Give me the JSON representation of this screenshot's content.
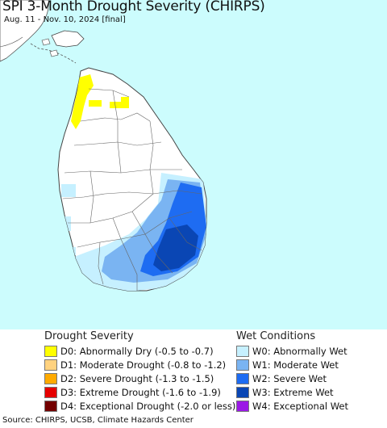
{
  "map": {
    "title": "SPI 3-Month Drought Severity (CHIRPS)",
    "subtitle": "Aug. 11 - Nov. 10, 2024 [final]",
    "ocean_color": "#ccfcfd",
    "land_color": "#ffffff",
    "boundary_color": "#555555",
    "region": "Sri Lanka",
    "category_colors": {
      "D0": "#ffff00",
      "D1": "#ffd27f",
      "D2": "#ffaa00",
      "D3": "#e60000",
      "D4": "#730000",
      "W0": "#c6f0ff",
      "W1": "#7ab4f2",
      "W2": "#1e6cf2",
      "W3": "#0a46b4",
      "W4": "#9b19e6"
    }
  },
  "legend": {
    "drought_heading": "Drought Severity",
    "wet_heading": "Wet Conditions",
    "drought_items": [
      {
        "code": "D0",
        "label": "D0: Abnormally Dry (-0.5 to -0.7)",
        "color": "#ffff00"
      },
      {
        "code": "D1",
        "label": "D1: Moderate Drought (-0.8 to -1.2)",
        "color": "#ffd27f"
      },
      {
        "code": "D2",
        "label": "D2: Severe Drought (-1.3 to -1.5)",
        "color": "#ffaa00"
      },
      {
        "code": "D3",
        "label": "D3: Extreme Drought (-1.6 to -1.9)",
        "color": "#e60000"
      },
      {
        "code": "D4",
        "label": "D4: Exceptional Drought (-2.0 or less)",
        "color": "#730000"
      }
    ],
    "wet_items": [
      {
        "code": "W0",
        "label": "W0: Abnormally Wet",
        "color": "#c6f0ff"
      },
      {
        "code": "W1",
        "label": "W1: Moderate Wet",
        "color": "#7ab4f2"
      },
      {
        "code": "W2",
        "label": "W2: Severe Wet",
        "color": "#1e6cf2"
      },
      {
        "code": "W3",
        "label": "W3: Extreme Wet",
        "color": "#0a46b4"
      },
      {
        "code": "W4",
        "label": "W4: Exceptional Wet",
        "color": "#9b19e6"
      }
    ]
  },
  "footer": {
    "source": "Source: CHIRPS, UCSB, Climate Hazards Center"
  }
}
